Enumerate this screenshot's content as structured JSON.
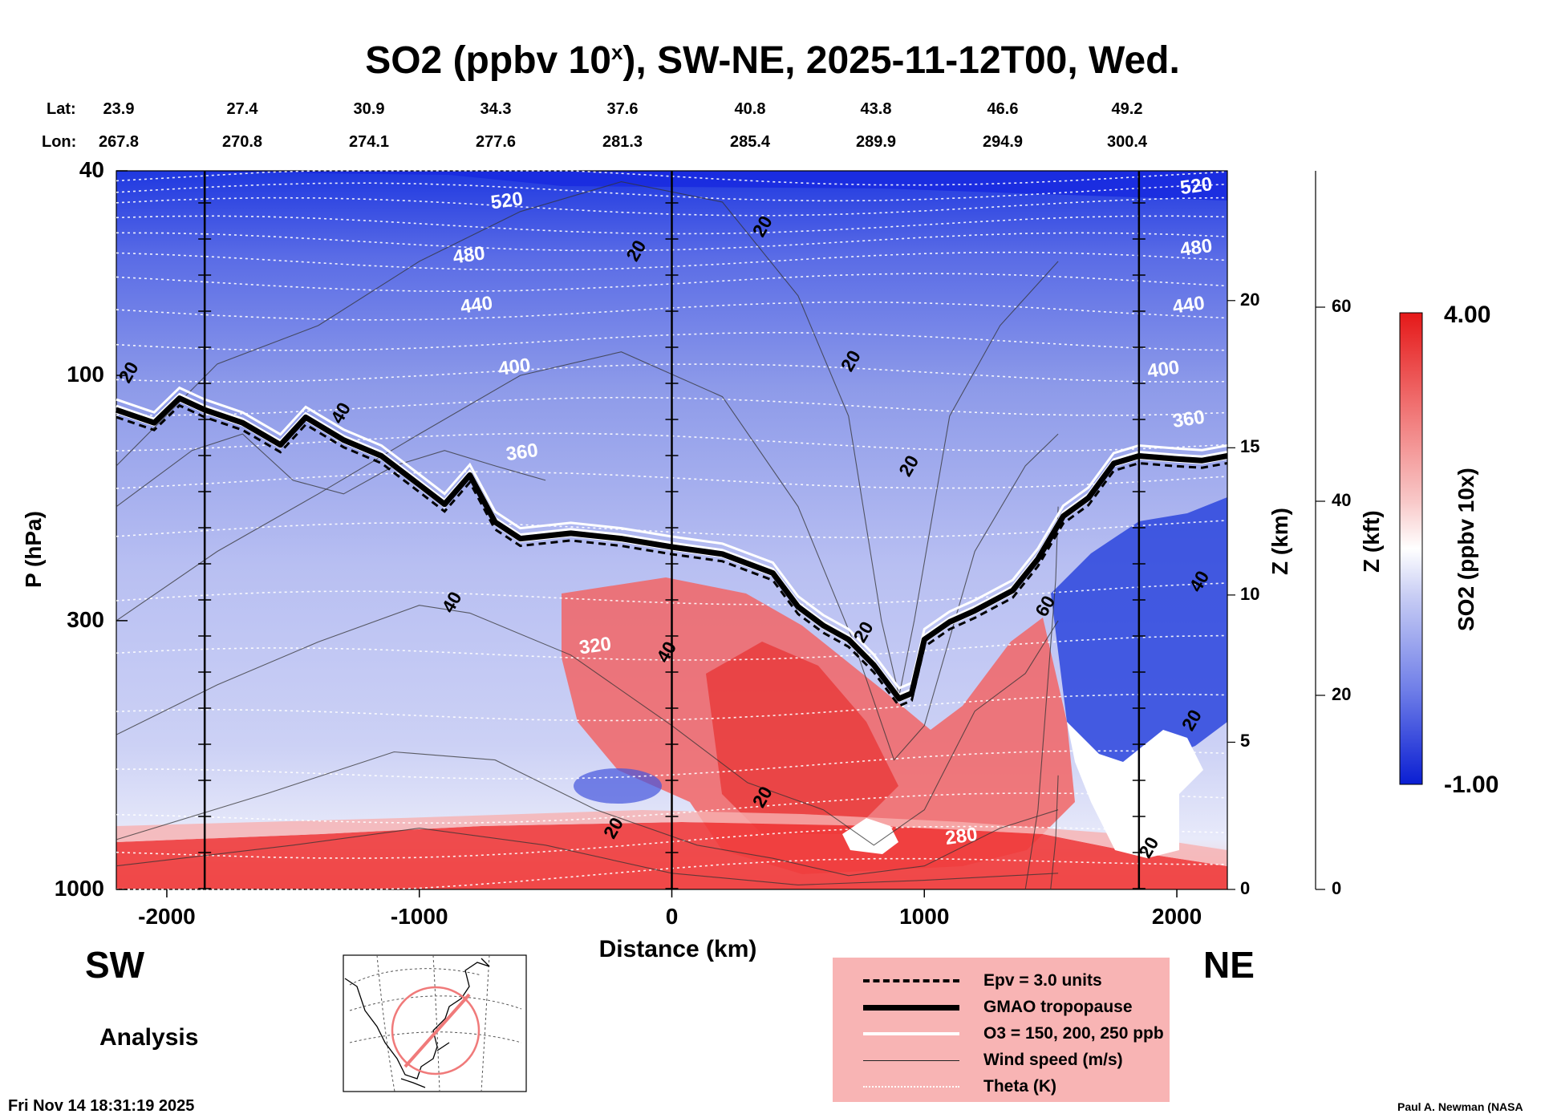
{
  "title": {
    "main": "SO2 (ppbv 10",
    "sup": "x",
    "rest": "), SW-NE, 2025-11-12T00, Wed."
  },
  "lat_label": "Lat:",
  "lon_label": "Lon:",
  "lats": [
    "23.9",
    "27.4",
    "30.9",
    "34.3",
    "37.6",
    "40.8",
    "43.8",
    "46.6",
    "49.2"
  ],
  "lons": [
    "267.8",
    "270.8",
    "274.1",
    "277.6",
    "281.3",
    "285.4",
    "289.9",
    "294.9",
    "300.4"
  ],
  "y_axis_label": "P (hPa)",
  "z_km_label": "Z (km)",
  "z_kft_label": "Z (kft)",
  "x_axis_label": "Distance (km)",
  "left_end": "SW",
  "right_end": "NE",
  "mode": "Analysis",
  "timestamp": "Fri Nov 14 18:31:19 2025",
  "credit": "Paul A. Newman (NASA",
  "colorbar": {
    "label": "SO2 (ppbv 10x)",
    "max": "4.00",
    "min": "-1.00",
    "low_color": "#0a1ed2",
    "mid_color": "#ffffff",
    "high_color": "#e51919"
  },
  "legend": {
    "epv": "Epv = 3.0 units",
    "tropopause": "GMAO tropopause",
    "o3": "O3 = 150, 200, 250 ppb",
    "wind": "Wind speed (m/s)",
    "theta": "Theta (K)"
  },
  "chart_data": {
    "type": "heatmap",
    "title": "SO2 (ppbv 10^x), SW-NE, 2025-11-12T00, Wed.",
    "xlabel": "Distance (km)",
    "ylabel": "P (hPa)",
    "xlim": [
      -2200,
      2200
    ],
    "ylim": [
      1000,
      40
    ],
    "x_ticks": [
      "-2000",
      "-1000",
      "0",
      "1000",
      "2000"
    ],
    "x_tick_values": [
      -2000,
      -1000,
      0,
      1000,
      2000
    ],
    "p_ticks": [
      "40",
      "100",
      "300",
      "1000"
    ],
    "p_tick_values": [
      40,
      100,
      300,
      1000
    ],
    "zkm_ticks": [
      "20",
      "15",
      "10",
      "5",
      "0"
    ],
    "zkm_values": [
      20,
      15,
      10,
      5,
      0
    ],
    "zkft_ticks": [
      "60",
      "40",
      "20",
      "0"
    ],
    "zkft_values": [
      60,
      40,
      20,
      0
    ],
    "vlines_km": [
      -1850,
      0,
      1850
    ],
    "theta_labels": [
      {
        "text": "520",
        "x": -650,
        "p": 47
      },
      {
        "text": "480",
        "x": -800,
        "p": 60
      },
      {
        "text": "440",
        "x": -770,
        "p": 75
      },
      {
        "text": "400",
        "x": -620,
        "p": 99
      },
      {
        "text": "360",
        "x": -590,
        "p": 145
      },
      {
        "text": "320",
        "x": -300,
        "p": 345
      },
      {
        "text": "280",
        "x": 1150,
        "p": 810
      },
      {
        "text": "520",
        "x": 2080,
        "p": 44
      },
      {
        "text": "480",
        "x": 2080,
        "p": 58
      },
      {
        "text": "440",
        "x": 2050,
        "p": 75
      },
      {
        "text": "400",
        "x": 1950,
        "p": 100
      },
      {
        "text": "360",
        "x": 2050,
        "p": 125
      }
    ],
    "wind_labels": [
      {
        "text": "20",
        "x": -2130,
        "p": 100
      },
      {
        "text": "40",
        "x": -1290,
        "p": 120
      },
      {
        "text": "20",
        "x": -120,
        "p": 58
      },
      {
        "text": "20",
        "x": 380,
        "p": 52
      },
      {
        "text": "20",
        "x": 730,
        "p": 95
      },
      {
        "text": "20",
        "x": 960,
        "p": 152
      },
      {
        "text": "40",
        "x": -850,
        "p": 280
      },
      {
        "text": "40",
        "x": 0,
        "p": 350
      },
      {
        "text": "20",
        "x": 780,
        "p": 320
      },
      {
        "text": "60",
        "x": 1500,
        "p": 285
      },
      {
        "text": "40",
        "x": 2110,
        "p": 255
      },
      {
        "text": "20",
        "x": 2080,
        "p": 475
      },
      {
        "text": "20",
        "x": 380,
        "p": 670
      },
      {
        "text": "20",
        "x": -210,
        "p": 770
      },
      {
        "text": "20",
        "x": 1910,
        "p": 840
      }
    ],
    "tropopause": {
      "x": [
        -2200,
        -2050,
        -1950,
        -1850,
        -1700,
        -1550,
        -1450,
        -1300,
        -1150,
        -1000,
        -900,
        -800,
        -700,
        -600,
        -400,
        -200,
        0,
        200,
        400,
        500,
        600,
        700,
        800,
        900,
        950,
        1000,
        1100,
        1200,
        1350,
        1450,
        1550,
        1650,
        1750,
        1850,
        2000,
        2100,
        2200
      ],
      "p": [
        118,
        125,
        112,
        118,
        125,
        138,
        122,
        135,
        145,
        165,
        180,
        158,
        195,
        210,
        205,
        210,
        218,
        225,
        245,
        285,
        310,
        330,
        370,
        430,
        420,
        330,
        305,
        290,
        265,
        230,
        190,
        175,
        150,
        145,
        147,
        148,
        145
      ]
    },
    "so2_field_description": "Positive (red) values below the tropopause near 0-1300 km and in a boundary layer strip near 1000 hPa; negative (blue) values in stratosphere and upper layers; strongest negative in upper band and near 1500-2200 km mid-troposphere.",
    "so2_range": [
      -1.0,
      4.0
    ]
  }
}
